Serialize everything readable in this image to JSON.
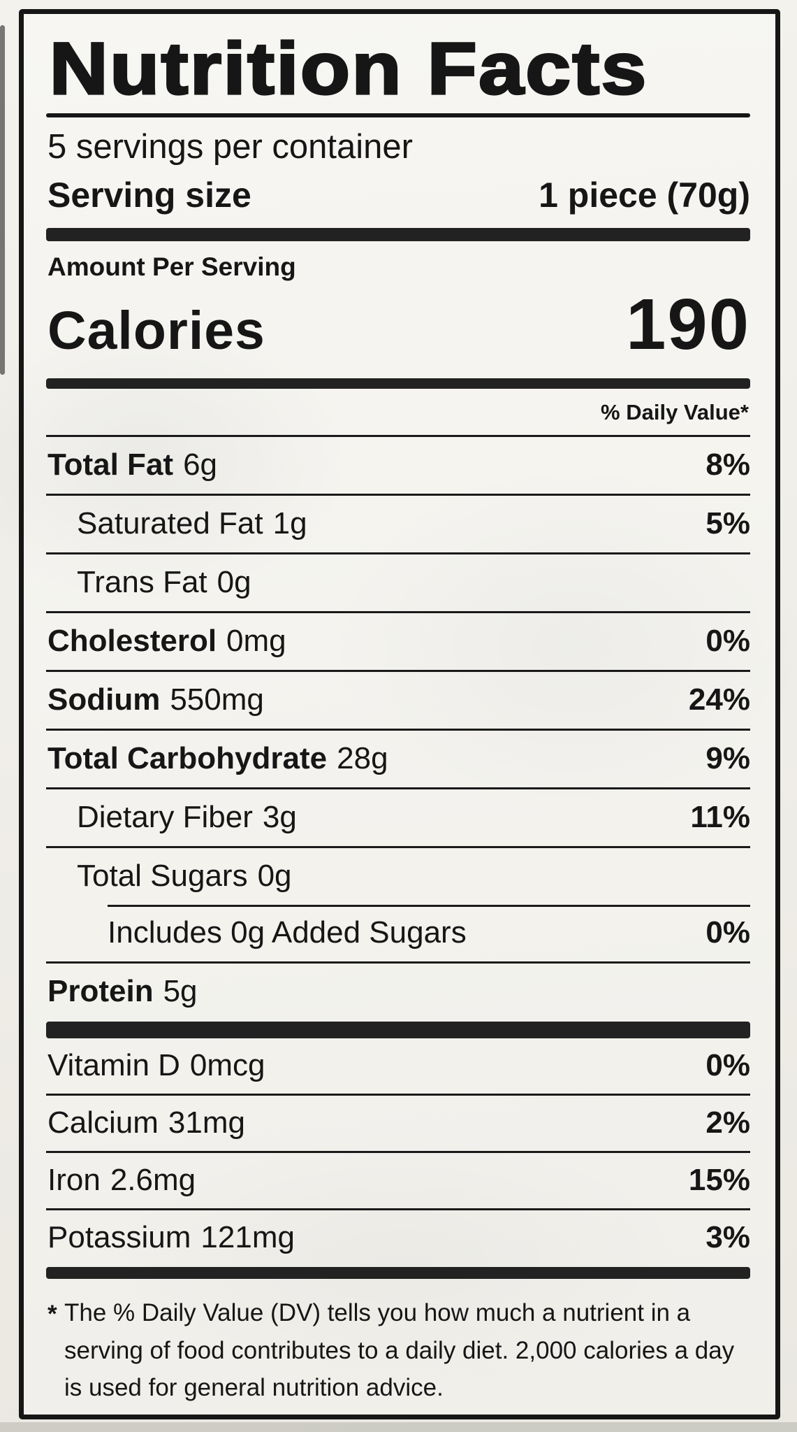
{
  "label": {
    "title": "Nutrition Facts",
    "servings_per_container": "5 servings per container",
    "serving_size_label": "Serving size",
    "serving_size_value": "1 piece (70g)",
    "amount_per_serving": "Amount Per Serving",
    "calories_label": "Calories",
    "calories_value": "190",
    "daily_value_header": "% Daily Value*",
    "footnote_marker": "*",
    "footnote": "The % Daily Value (DV) tells you how much a nutrient in a serving of food contributes to a daily diet. 2,000 calories a day is used for general nutrition advice."
  },
  "nutrients": [
    {
      "name": "Total Fat",
      "amount": "6g",
      "dv": "8%",
      "indent": 0,
      "bold_name": true,
      "separator_indent": false
    },
    {
      "name": "Saturated Fat",
      "amount": "1g",
      "dv": "5%",
      "indent": 1,
      "bold_name": false,
      "separator_indent": false
    },
    {
      "name": "Trans Fat",
      "amount": "0g",
      "dv": "",
      "indent": 1,
      "bold_name": false,
      "separator_indent": false
    },
    {
      "name": "Cholesterol",
      "amount": "0mg",
      "dv": "0%",
      "indent": 0,
      "bold_name": true,
      "separator_indent": false
    },
    {
      "name": "Sodium",
      "amount": "550mg",
      "dv": "24%",
      "indent": 0,
      "bold_name": true,
      "separator_indent": false
    },
    {
      "name": "Total Carbohydrate",
      "amount": "28g",
      "dv": "9%",
      "indent": 0,
      "bold_name": true,
      "separator_indent": false
    },
    {
      "name": "Dietary Fiber",
      "amount": "3g",
      "dv": "11%",
      "indent": 1,
      "bold_name": false,
      "separator_indent": false
    },
    {
      "name": "Total Sugars",
      "amount": "0g",
      "dv": "",
      "indent": 1,
      "bold_name": false,
      "separator_indent": false
    },
    {
      "name": "Includes 0g Added Sugars",
      "amount": "",
      "dv": "0%",
      "indent": 2,
      "bold_name": false,
      "separator_indent": true
    },
    {
      "name": "Protein",
      "amount": "5g",
      "dv": "",
      "indent": 0,
      "bold_name": true,
      "separator_indent": false
    }
  ],
  "micronutrients": [
    {
      "name": "Vitamin D",
      "amount": "0mcg",
      "dv": "0%"
    },
    {
      "name": "Calcium",
      "amount": "31mg",
      "dv": "2%"
    },
    {
      "name": "Iron",
      "amount": "2.6mg",
      "dv": "15%"
    },
    {
      "name": "Potassium",
      "amount": "121mg",
      "dv": "3%"
    }
  ],
  "colors": {
    "ink": "#161616",
    "paper": "#f1efe9"
  }
}
